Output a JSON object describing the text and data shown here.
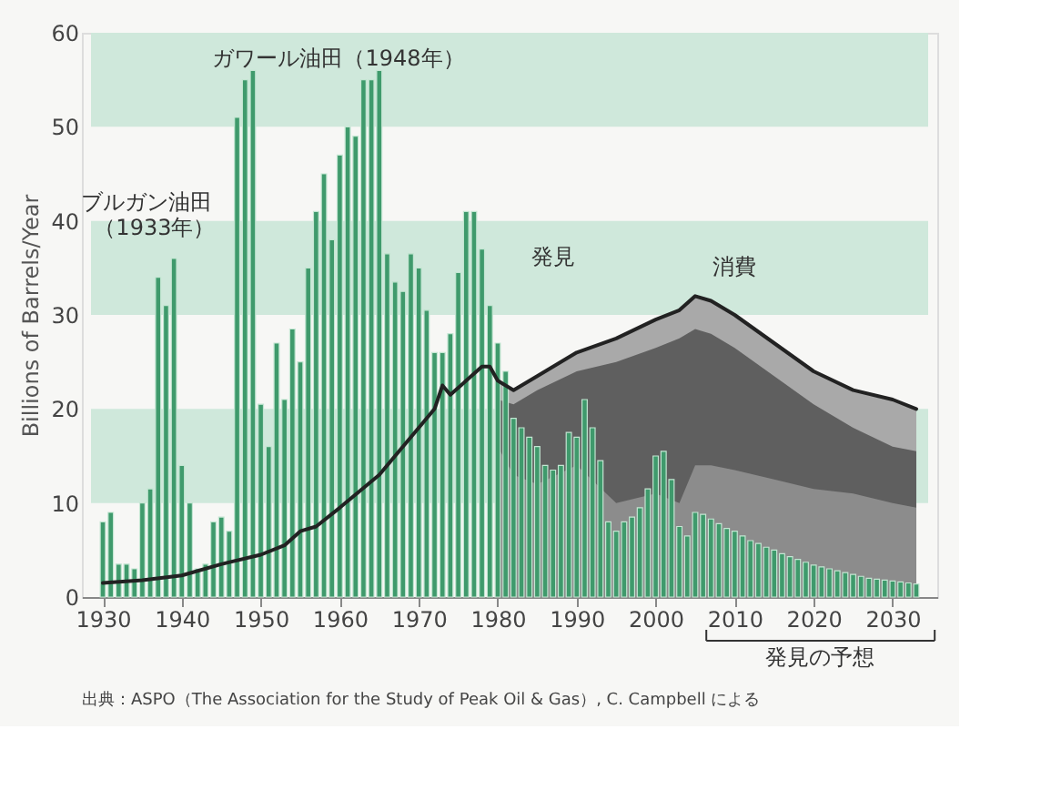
{
  "chart_data": {
    "type": "bar",
    "ylabel": "Billions of Barrels/Year",
    "xlim": [
      1928.5,
      2034.5
    ],
    "xticks": [
      1930,
      1940,
      1950,
      1960,
      1970,
      1980,
      1990,
      2000,
      2010,
      2020,
      2030
    ],
    "ylim": [
      0,
      60
    ],
    "yticks": [
      0,
      10,
      20,
      30,
      40,
      50,
      60
    ],
    "series": [
      {
        "type": "area",
        "color": "#a9a9a9",
        "x": [
          1980,
          1982,
          1985,
          1990,
          1995,
          2000,
          2003,
          2005,
          2007,
          2010,
          2015,
          2020,
          2025,
          2030,
          2033
        ],
        "values": [
          23,
          22,
          23.5,
          26,
          27.5,
          29.5,
          30.5,
          32,
          31.5,
          30,
          27,
          24,
          22,
          21,
          20
        ]
      },
      {
        "type": "area",
        "color": "#5f5f5f",
        "x": [
          1980,
          1982,
          1985,
          1990,
          1995,
          2000,
          2003,
          2005,
          2007,
          2010,
          2015,
          2020,
          2025,
          2030,
          2033
        ],
        "values": [
          21,
          20.5,
          22,
          24,
          25,
          26.5,
          27.5,
          28.5,
          28,
          26.5,
          23.5,
          20.5,
          18,
          16,
          15.5
        ]
      },
      {
        "type": "area",
        "color": "#8c8c8c",
        "x": [
          1980,
          1982,
          1985,
          1990,
          1995,
          2000,
          2003,
          2005,
          2007,
          2010,
          2015,
          2020,
          2025,
          2030,
          2033
        ],
        "values": [
          16,
          13,
          12,
          14,
          10,
          11,
          10,
          14,
          14,
          13.5,
          12.5,
          11.5,
          11,
          10,
          9.5
        ]
      },
      {
        "name": "発見",
        "color": "#3f9a6c",
        "x": [
          1930,
          1931,
          1932,
          1933,
          1934,
          1935,
          1936,
          1937,
          1938,
          1939,
          1940,
          1941,
          1942,
          1943,
          1944,
          1945,
          1946,
          1947,
          1948,
          1949,
          1950,
          1951,
          1952,
          1953,
          1954,
          1955,
          1956,
          1957,
          1958,
          1959,
          1960,
          1961,
          1962,
          1963,
          1964,
          1965,
          1966,
          1967,
          1968,
          1969,
          1970,
          1971,
          1972,
          1973,
          1974,
          1975,
          1976,
          1977,
          1978,
          1979,
          1980,
          1981,
          1982,
          1983,
          1984,
          1985,
          1986,
          1987,
          1988,
          1989,
          1990,
          1991,
          1992,
          1993,
          1994,
          1995,
          1996,
          1997,
          1998,
          1999,
          2000,
          2001,
          2002,
          2003,
          2004,
          2005,
          2006,
          2007,
          2008,
          2009,
          2010,
          2011,
          2012,
          2013,
          2014,
          2015,
          2016,
          2017,
          2018,
          2019,
          2020,
          2021,
          2022,
          2023,
          2024,
          2025,
          2026,
          2027,
          2028,
          2029,
          2030,
          2031,
          2032,
          2033
        ],
        "values": [
          8,
          9,
          3.5,
          3.5,
          3,
          10,
          11.5,
          34,
          31,
          36,
          14,
          10,
          3,
          3.5,
          8,
          8.5,
          7,
          51,
          55,
          56,
          20.5,
          16,
          27,
          21,
          28.5,
          25,
          35,
          41,
          45,
          38,
          47,
          50,
          49,
          55,
          55,
          56,
          36.5,
          33.5,
          32.5,
          36.5,
          35,
          30.5,
          26,
          26,
          28,
          34.5,
          41,
          41,
          37,
          31,
          27,
          24,
          19,
          18,
          17,
          16,
          14,
          13.5,
          14,
          17.5,
          17,
          21,
          18,
          14.5,
          8,
          7,
          8,
          8.5,
          9.5,
          11.5,
          15,
          15.5,
          12.5,
          7.5,
          6.5,
          9,
          8.8,
          8.3,
          7.8,
          7.3,
          7,
          6.5,
          6,
          5.7,
          5.3,
          5,
          4.6,
          4.3,
          4,
          3.7,
          3.4,
          3.2,
          3,
          2.8,
          2.6,
          2.4,
          2.2,
          2,
          1.9,
          1.8,
          1.7,
          1.6,
          1.5,
          1.4
        ]
      },
      {
        "type": "line",
        "name": "消費",
        "color": "#222222",
        "x": [
          1930,
          1935,
          1940,
          1945,
          1950,
          1953,
          1955,
          1957,
          1960,
          1965,
          1970,
          1972,
          1973,
          1974,
          1976,
          1978,
          1979,
          1980,
          1982,
          1985,
          1990,
          1995,
          2000,
          2003,
          2005,
          2007,
          2010,
          2015,
          2020,
          2025,
          2030,
          2033
        ],
        "values": [
          1.5,
          1.8,
          2.3,
          3.5,
          4.5,
          5.5,
          7,
          7.5,
          9.5,
          13,
          18,
          20,
          22.5,
          21.5,
          23,
          24.5,
          24.5,
          23,
          22,
          23.5,
          26,
          27.5,
          29.5,
          30.5,
          32,
          31.5,
          30,
          27,
          24,
          22,
          21,
          20
        ]
      }
    ],
    "bands": [
      {
        "axis": "y",
        "from": 50,
        "to": 60,
        "color": "#cfe8db"
      },
      {
        "axis": "y",
        "from": 30,
        "to": 40,
        "color": "#cfe8db"
      },
      {
        "axis": "y",
        "from": 10,
        "to": 20,
        "color": "#cfe8db"
      }
    ],
    "annotations": [
      "ガワール油田（1948年）",
      "ブルガン油田",
      "（1933年）",
      "発見の予想",
      "出典：ASPO（The Association for the Study of Peak Oil & Gas）, C. Campbell による"
    ]
  }
}
